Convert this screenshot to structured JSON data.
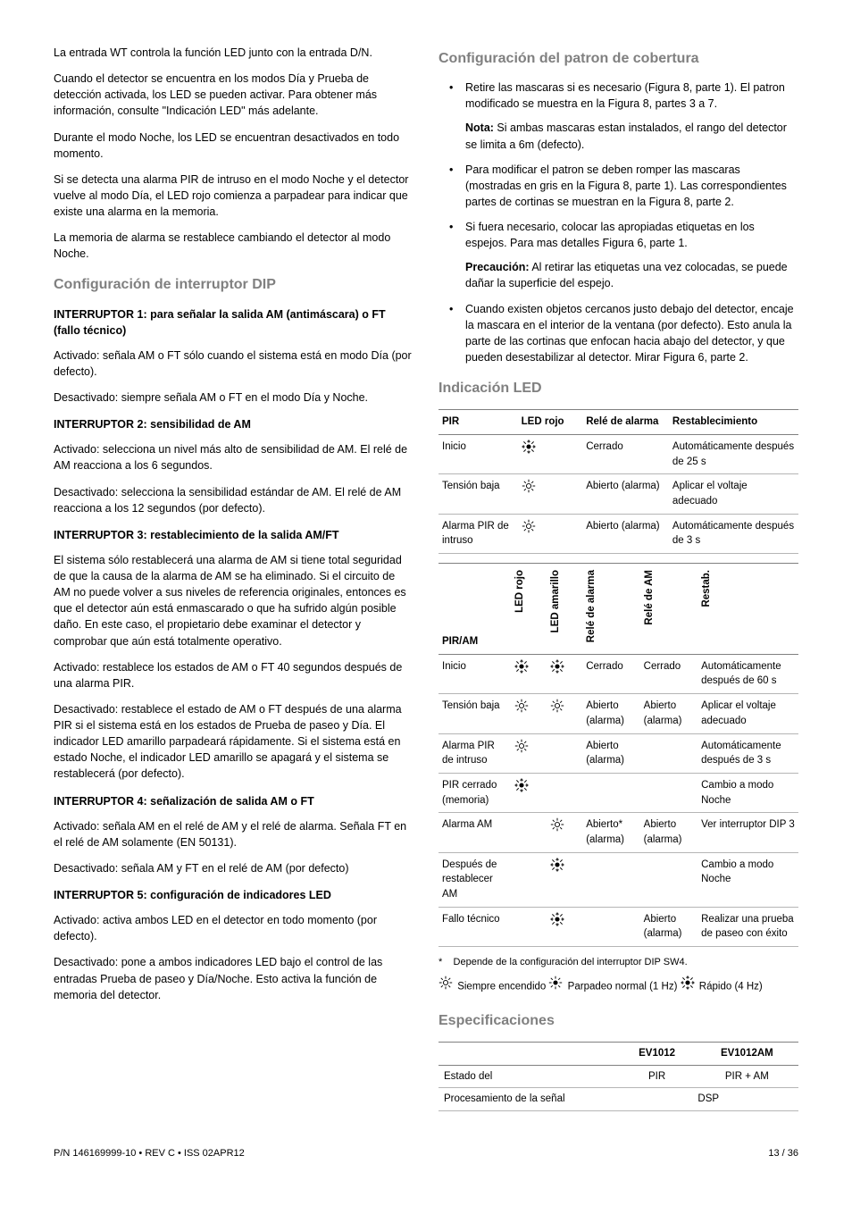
{
  "left": {
    "intro": [
      "La entrada WT controla la función LED junto con la entrada D/N.",
      "Cuando el detector se encuentra en los modos Día y Prueba de detección activada, los LED se pueden activar. Para obtener más información, consulte \"Indicación LED\" más adelante.",
      "Durante el modo Noche, los LED se encuentran desactivados en todo momento.",
      "Si se detecta una alarma PIR de intruso en el modo Noche y el detector vuelve al modo Día, el LED rojo comienza a parpadear para indicar que existe una alarma en la memoria.",
      "La memoria de alarma se restablece cambiando el detector al modo Noche."
    ],
    "dip_heading": "Configuración de interruptor DIP",
    "sw1_title": "INTERRUPTOR 1: para señalar la salida AM (antimáscara) o FT (fallo técnico)",
    "sw1_p1": "Activado: señala AM o FT sólo cuando el sistema está en modo Día (por defecto).",
    "sw1_p2": "Desactivado: siempre señala AM o FT en el modo Día y Noche.",
    "sw2_title": "INTERRUPTOR 2: sensibilidad de AM",
    "sw2_p1": "Activado: selecciona un nivel más alto de sensibilidad de AM. El relé de AM reacciona a los 6 segundos.",
    "sw2_p2": "Desactivado: selecciona la sensibilidad estándar de AM. El relé de AM reacciona a los 12 segundos (por defecto).",
    "sw3_title": "INTERRUPTOR 3: restablecimiento de la salida AM/FT",
    "sw3_p1": "El sistema sólo restablecerá una alarma de AM si tiene total seguridad de que la causa de la alarma de AM se ha eliminado. Si el circuito de AM no puede volver a sus niveles de referencia originales, entonces es que el detector aún está enmascarado o que ha sufrido algún posible daño. En este caso, el propietario debe examinar el detector y comprobar que aún está totalmente operativo.",
    "sw3_p2": "Activado: restablece los estados de AM o FT 40 segundos después de una alarma PIR.",
    "sw3_p3": "Desactivado: restablece el estado de AM o FT después de una alarma PIR si el sistema está en los estados de Prueba de paseo y Día. El indicador LED amarillo parpadeará rápidamente. Si el sistema está en estado Noche, el indicador LED amarillo se apagará y el sistema se restablecerá (por defecto).",
    "sw4_title": "INTERRUPTOR 4: señalización de salida AM o FT",
    "sw4_p1": "Activado: señala AM en el relé de AM y el relé de alarma. Señala FT en el relé de AM solamente (EN 50131).",
    "sw4_p2": "Desactivado: señala AM y FT en el relé de AM (por defecto)",
    "sw5_title": "INTERRUPTOR 5: configuración de indicadores LED",
    "sw5_p1": "Activado: activa ambos LED en el detector en todo momento (por defecto).",
    "sw5_p2": "Desactivado: pone a ambos indicadores LED bajo el control de las entradas Prueba de paseo y Día/Noche. Esto activa la función de memoria del detector."
  },
  "right": {
    "cov_heading": "Configuración del patron de cobertura",
    "cov_items": [
      {
        "p1": "Retire las mascaras si es necesario (Figura 8, parte 1). El patron modificado se muestra en la Figura 8, partes 3 a 7.",
        "note_label": "Nota:",
        "note": " Si ambas mascaras estan instalados, el rango del detector se limita a 6m (defecto)."
      },
      {
        "p1": "Para modificar el patron se deben romper las mascaras (mostradas en gris en la Figura 8, parte 1). Las correspondientes partes de cortinas se muestran en la Figura 8, parte 2."
      },
      {
        "p1": "Si fuera necesario, colocar las apropiadas etiquetas en los espejos. Para mas detalles Figura 6, parte 1.",
        "warn_label": "Precaución:",
        "warn": " Al retirar las etiquetas una vez colocadas, se puede dañar la superficie del espejo."
      },
      {
        "p1": "Cuando existen objetos cercanos justo debajo del detector, encaje la mascara en el interior de la ventana (por defecto). Esto anula la parte de las cortinas que enfocan hacia abajo del detector, y que pueden desestabilizar al detector. Mirar Figura 6, parte 2."
      }
    ],
    "led_heading": "Indicación LED",
    "pir_table": {
      "headers": [
        "PIR",
        "LED rojo",
        "Relé de alarma",
        "Restablecimiento"
      ],
      "rows": [
        {
          "c0": "Inicio",
          "icon": "fast",
          "c2": "Cerrado",
          "c3": "Automáticamente después de 25 s"
        },
        {
          "c0": "Tensión baja",
          "icon": "on",
          "c2": "Abierto (alarma)",
          "c3": "Aplicar el voltaje adecuado"
        },
        {
          "c0": "Alarma PIR de intruso",
          "icon": "on",
          "c2": "Abierto (alarma)",
          "c3": "Automáticamente después de 3 s"
        }
      ]
    },
    "piram_table": {
      "title": "PIR/AM",
      "vheaders": [
        "LED rojo",
        "LED amarillo",
        "Relé de alarma",
        "Relé de AM",
        "Restab."
      ],
      "rows": [
        {
          "c0": "Inicio",
          "r": "fast",
          "y": "fast",
          "ra": "Cerrado",
          "ram": "Cerrado",
          "rs": "Automáticamente después de 60 s"
        },
        {
          "c0": "Tensión baja",
          "r": "on",
          "y": "on",
          "ra": "Abierto (alarma)",
          "ram": "Abierto (alarma)",
          "rs": "Aplicar el voltaje adecuado"
        },
        {
          "c0": "Alarma PIR de intruso",
          "r": "on",
          "y": "",
          "ra": "Abierto (alarma)",
          "ram": "",
          "rs": "Automáticamente después de 3 s"
        },
        {
          "c0": "PIR cerrado (memoria)",
          "r": "fast",
          "y": "",
          "ra": "",
          "ram": "",
          "rs": "Cambio a modo Noche"
        },
        {
          "c0": "Alarma AM",
          "r": "",
          "y": "on",
          "ra": "Abierto* (alarma)",
          "ram": "Abierto (alarma)",
          "rs": "Ver interruptor DIP 3"
        },
        {
          "c0": "Después de restablecer AM",
          "r": "",
          "y": "fast",
          "ra": "",
          "ram": "",
          "rs": "Cambio a modo Noche"
        },
        {
          "c0": "Fallo técnico",
          "r": "",
          "y": "fast",
          "ra": "",
          "ram": "Abierto (alarma)",
          "rs": "Realizar una prueba de paseo con éxito"
        }
      ]
    },
    "footnote_star": "*",
    "footnote": "Depende de la configuración del interruptor DIP SW4.",
    "legend_on": " Siempre encendido  ",
    "legend_norm": " Parpadeo normal (1 Hz) ",
    "legend_fast": " Rápido (4 Hz)",
    "spec_heading": "Especificaciones",
    "spec_table": {
      "headers": [
        "",
        "EV1012",
        "EV1012AM"
      ],
      "rows": [
        [
          "Estado del",
          "PIR",
          "PIR + AM"
        ],
        [
          "Procesamiento de la señal",
          "DSP",
          ""
        ]
      ]
    }
  },
  "footer": {
    "left": "P/N 146169999-10 • REV C • ISS 02APR12",
    "right": "13 / 36"
  }
}
